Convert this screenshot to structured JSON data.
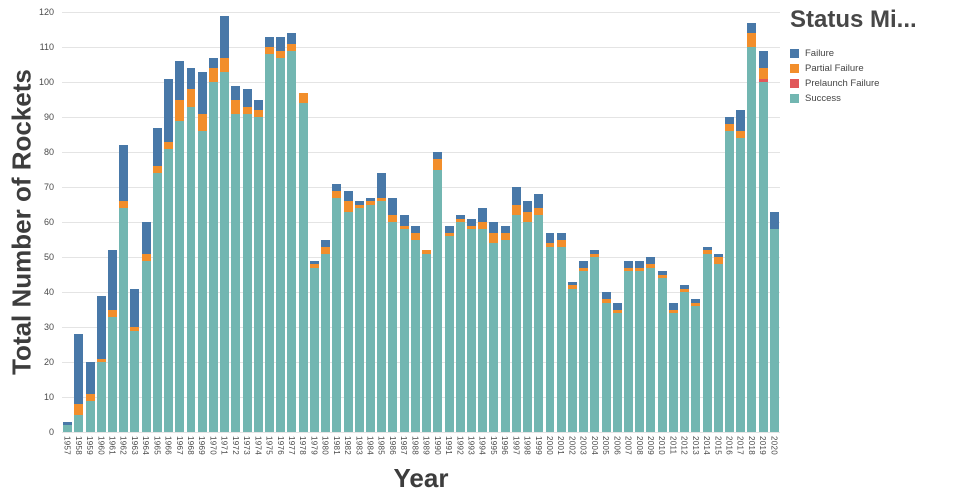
{
  "legend": {
    "title": "Status Mi...",
    "items": [
      {
        "label": "Failure",
        "color": "#4878A8"
      },
      {
        "label": "Partial Failure",
        "color": "#F28E2B"
      },
      {
        "label": "Prelaunch Failure",
        "color": "#E15759"
      },
      {
        "label": "Success",
        "color": "#72B6B1"
      }
    ]
  },
  "chart_data": {
    "type": "bar",
    "stacked": true,
    "title": "",
    "xlabel": "Year",
    "ylabel": "Total Number of Rockets",
    "ylim": [
      0,
      120
    ],
    "ytick_step": 10,
    "yticks": [
      0,
      10,
      20,
      30,
      40,
      50,
      60,
      70,
      80,
      90,
      100,
      110,
      120
    ],
    "grid": "horizontal",
    "legend_position": "right",
    "categories": [
      "1957",
      "1958",
      "1959",
      "1960",
      "1961",
      "1962",
      "1963",
      "1964",
      "1965",
      "1966",
      "1967",
      "1968",
      "1969",
      "1970",
      "1971",
      "1972",
      "1973",
      "1974",
      "1975",
      "1976",
      "1977",
      "1978",
      "1979",
      "1980",
      "1981",
      "1982",
      "1983",
      "1984",
      "1985",
      "1986",
      "1987",
      "1988",
      "1989",
      "1990",
      "1991",
      "1992",
      "1993",
      "1994",
      "1995",
      "1996",
      "1997",
      "1998",
      "1999",
      "2000",
      "2001",
      "2002",
      "2003",
      "2004",
      "2005",
      "2006",
      "2007",
      "2008",
      "2009",
      "2010",
      "2011",
      "2012",
      "2013",
      "2014",
      "2015",
      "2016",
      "2017",
      "2018",
      "2019",
      "2020"
    ],
    "series": [
      {
        "name": "Success",
        "color": "#72B6B1",
        "values": [
          2,
          5,
          9,
          20,
          33,
          64,
          29,
          49,
          74,
          81,
          89,
          93,
          86,
          100,
          103,
          91,
          91,
          90,
          108,
          107,
          109,
          94,
          47,
          51,
          67,
          63,
          64,
          65,
          66,
          60,
          58,
          55,
          51,
          75,
          56,
          60,
          58,
          58,
          54,
          55,
          62,
          60,
          62,
          53,
          53,
          41,
          46,
          50,
          37,
          34,
          46,
          46,
          47,
          44,
          34,
          40,
          36,
          51,
          48,
          86,
          84,
          110,
          100,
          58
        ]
      },
      {
        "name": "Prelaunch Failure",
        "color": "#E15759",
        "values": [
          0,
          0,
          0,
          0,
          0,
          0,
          0,
          0,
          0,
          0,
          0,
          0,
          0,
          0,
          0,
          0,
          0,
          0,
          0,
          0,
          0,
          0,
          0,
          0,
          0,
          0,
          0,
          0,
          0,
          0,
          0,
          0,
          0,
          0,
          0,
          0,
          0,
          0,
          0,
          0,
          0,
          0,
          0,
          0,
          0,
          0,
          0,
          0,
          0,
          0,
          0,
          0,
          0,
          0,
          0,
          0,
          0,
          0,
          0,
          0,
          0,
          0,
          1,
          0
        ]
      },
      {
        "name": "Partial Failure",
        "color": "#F28E2B",
        "values": [
          0,
          3,
          2,
          1,
          2,
          2,
          1,
          2,
          2,
          2,
          6,
          5,
          5,
          4,
          4,
          4,
          2,
          2,
          2,
          2,
          2,
          3,
          1,
          2,
          2,
          3,
          1,
          1,
          1,
          2,
          1,
          2,
          1,
          3,
          1,
          1,
          1,
          2,
          3,
          2,
          3,
          3,
          2,
          1,
          2,
          1,
          1,
          1,
          1,
          1,
          1,
          1,
          1,
          1,
          1,
          1,
          1,
          1,
          2,
          2,
          2,
          4,
          3,
          0
        ]
      },
      {
        "name": "Failure",
        "color": "#4878A8",
        "values": [
          1,
          20,
          9,
          18,
          17,
          16,
          11,
          9,
          11,
          18,
          11,
          6,
          12,
          3,
          12,
          4,
          5,
          3,
          3,
          4,
          3,
          0,
          1,
          2,
          2,
          3,
          1,
          1,
          7,
          5,
          3,
          2,
          0,
          2,
          2,
          1,
          2,
          4,
          3,
          2,
          5,
          3,
          4,
          3,
          2,
          1,
          2,
          1,
          2,
          2,
          2,
          2,
          2,
          1,
          2,
          1,
          1,
          1,
          1,
          2,
          6,
          3,
          5,
          5
        ]
      }
    ]
  }
}
